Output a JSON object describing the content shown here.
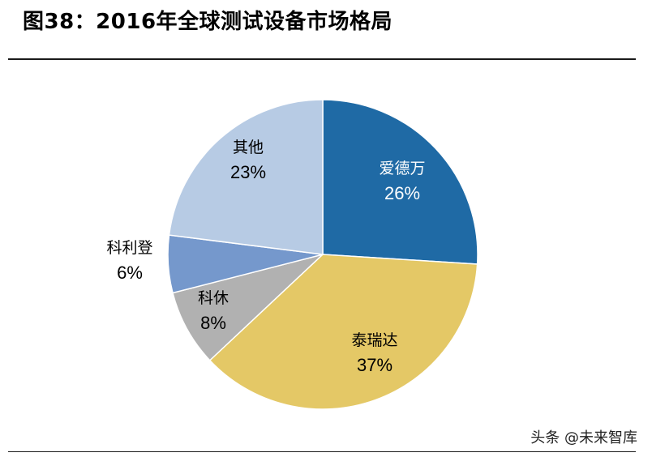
{
  "title": "图38：2016年全球测试设备市场格局",
  "source": "头条 @未来智库",
  "chart_data": {
    "type": "pie",
    "title": "",
    "slices": [
      {
        "label": "爱德万",
        "value": 26,
        "display": "26%",
        "color": "#1f6aa5",
        "text_color": "#ffffff"
      },
      {
        "label": "泰瑞达",
        "value": 37,
        "display": "37%",
        "color": "#e4c866",
        "text_color": "#000000"
      },
      {
        "label": "科休",
        "value": 8,
        "display": "8%",
        "color": "#b1b1b1",
        "text_color": "#000000"
      },
      {
        "label": "科利登",
        "value": 6,
        "display": "6%",
        "color": "#7598cc",
        "text_color": "#000000"
      },
      {
        "label": "其他",
        "value": 23,
        "display": "23%",
        "color": "#b7cbe4",
        "text_color": "#000000"
      }
    ]
  }
}
